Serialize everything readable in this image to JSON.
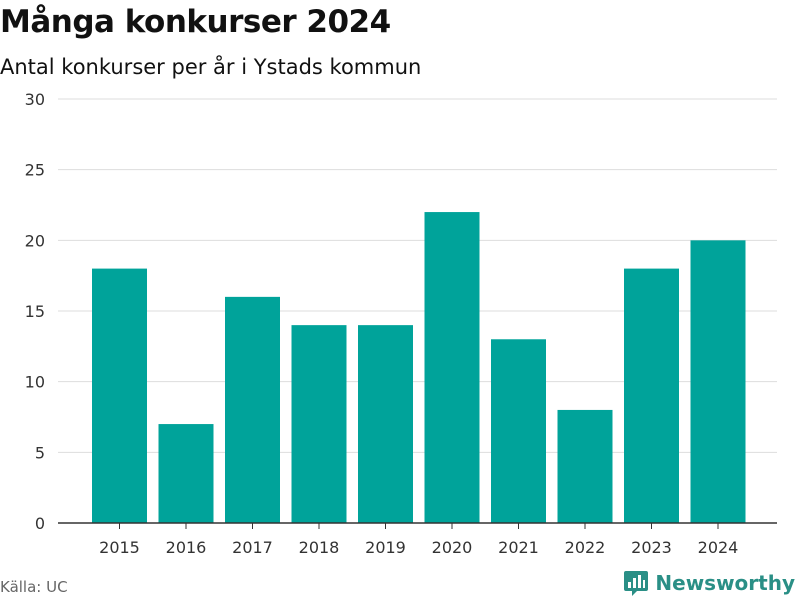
{
  "title": "Många konkurser 2024",
  "subtitle": "Antal konkurser per år i Ystads kommun",
  "source": "Källa: UC",
  "brand": "Newsworthy",
  "colors": {
    "bar": "#00a39a",
    "grid": "#dddddd",
    "axis": "#333333",
    "brand": "#2a8f86"
  },
  "chart_data": {
    "type": "bar",
    "title": "Många konkurser 2024",
    "subtitle": "Antal konkurser per år i Ystads kommun",
    "categories": [
      "2015",
      "2016",
      "2017",
      "2018",
      "2019",
      "2020",
      "2021",
      "2022",
      "2023",
      "2024"
    ],
    "values": [
      18,
      7,
      16,
      14,
      14,
      22,
      13,
      8,
      18,
      20
    ],
    "xlabel": "",
    "ylabel": "",
    "ylim": [
      0,
      30
    ],
    "yticks": [
      0,
      5,
      10,
      15,
      20,
      25,
      30
    ],
    "grid": true,
    "legend": "none"
  }
}
